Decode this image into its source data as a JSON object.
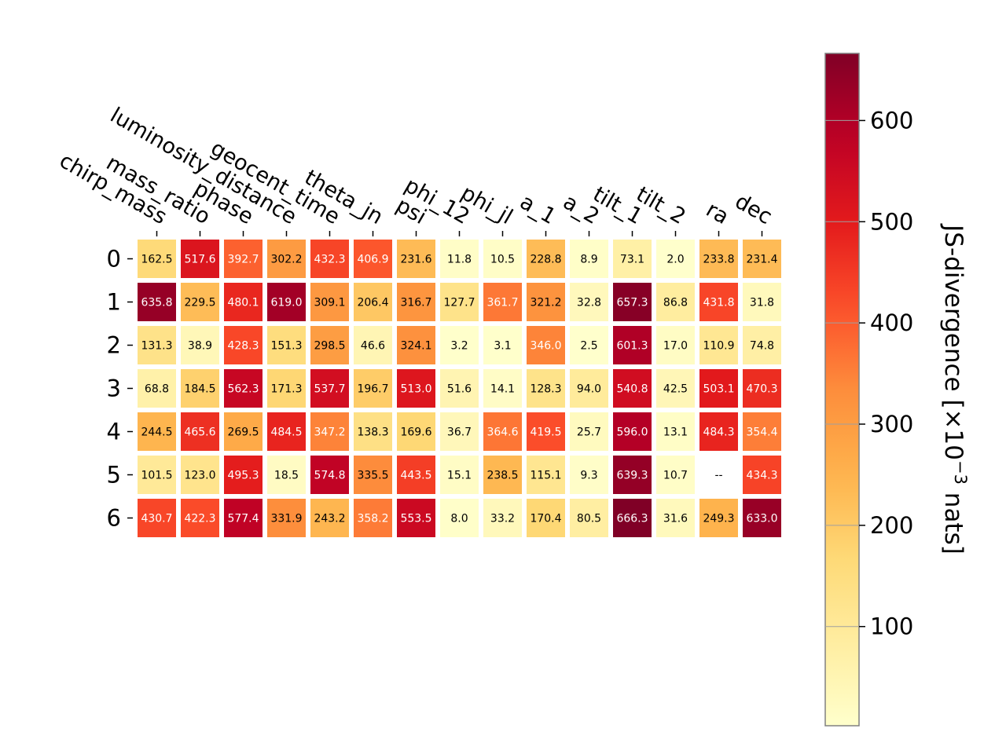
{
  "chart_data": {
    "type": "heatmap",
    "columns": [
      "chirp_mass",
      "mass_ratio",
      "phase",
      "luminosity_distance",
      "geocent_time",
      "theta_jn",
      "psi",
      "phi_12",
      "phi_jl",
      "a_1",
      "a_2",
      "tilt_1",
      "tilt_2",
      "ra",
      "dec"
    ],
    "rows": [
      "0",
      "1",
      "2",
      "3",
      "4",
      "5",
      "6"
    ],
    "values": [
      [
        162.5,
        517.6,
        392.7,
        302.2,
        432.3,
        406.9,
        231.6,
        11.8,
        10.5,
        228.8,
        8.9,
        73.1,
        2.0,
        233.8,
        231.4
      ],
      [
        635.8,
        229.5,
        480.1,
        619.0,
        309.1,
        206.4,
        316.7,
        127.7,
        361.7,
        321.2,
        32.8,
        657.3,
        86.8,
        431.8,
        31.8
      ],
      [
        131.3,
        38.9,
        428.3,
        151.3,
        298.5,
        46.6,
        324.1,
        3.2,
        3.1,
        346.0,
        2.5,
        601.3,
        17.0,
        110.9,
        74.8
      ],
      [
        68.8,
        184.5,
        562.3,
        171.3,
        537.7,
        196.7,
        513.0,
        51.6,
        14.1,
        128.3,
        94.0,
        540.8,
        42.5,
        503.1,
        470.3
      ],
      [
        244.5,
        465.6,
        269.5,
        484.5,
        347.2,
        138.3,
        169.6,
        36.7,
        364.6,
        419.5,
        25.7,
        596.0,
        13.1,
        484.3,
        354.4
      ],
      [
        101.5,
        123.0,
        495.3,
        18.5,
        574.8,
        335.5,
        443.5,
        15.1,
        238.5,
        115.1,
        9.3,
        639.3,
        10.7,
        null,
        434.3
      ],
      [
        430.7,
        422.3,
        577.4,
        331.9,
        243.2,
        358.2,
        553.5,
        8.0,
        33.2,
        170.4,
        80.5,
        666.3,
        31.6,
        249.3,
        633.0
      ]
    ],
    "missing_label": "--",
    "colormap": "YlOrRd",
    "colorbar": {
      "label": "JS-divergence [×10",
      "label_exponent": "−3",
      "label_suffix": " nats]",
      "ticks": [
        100,
        200,
        300,
        400,
        500,
        600
      ],
      "range": [
        2.0,
        666.3
      ]
    },
    "grid": false
  }
}
